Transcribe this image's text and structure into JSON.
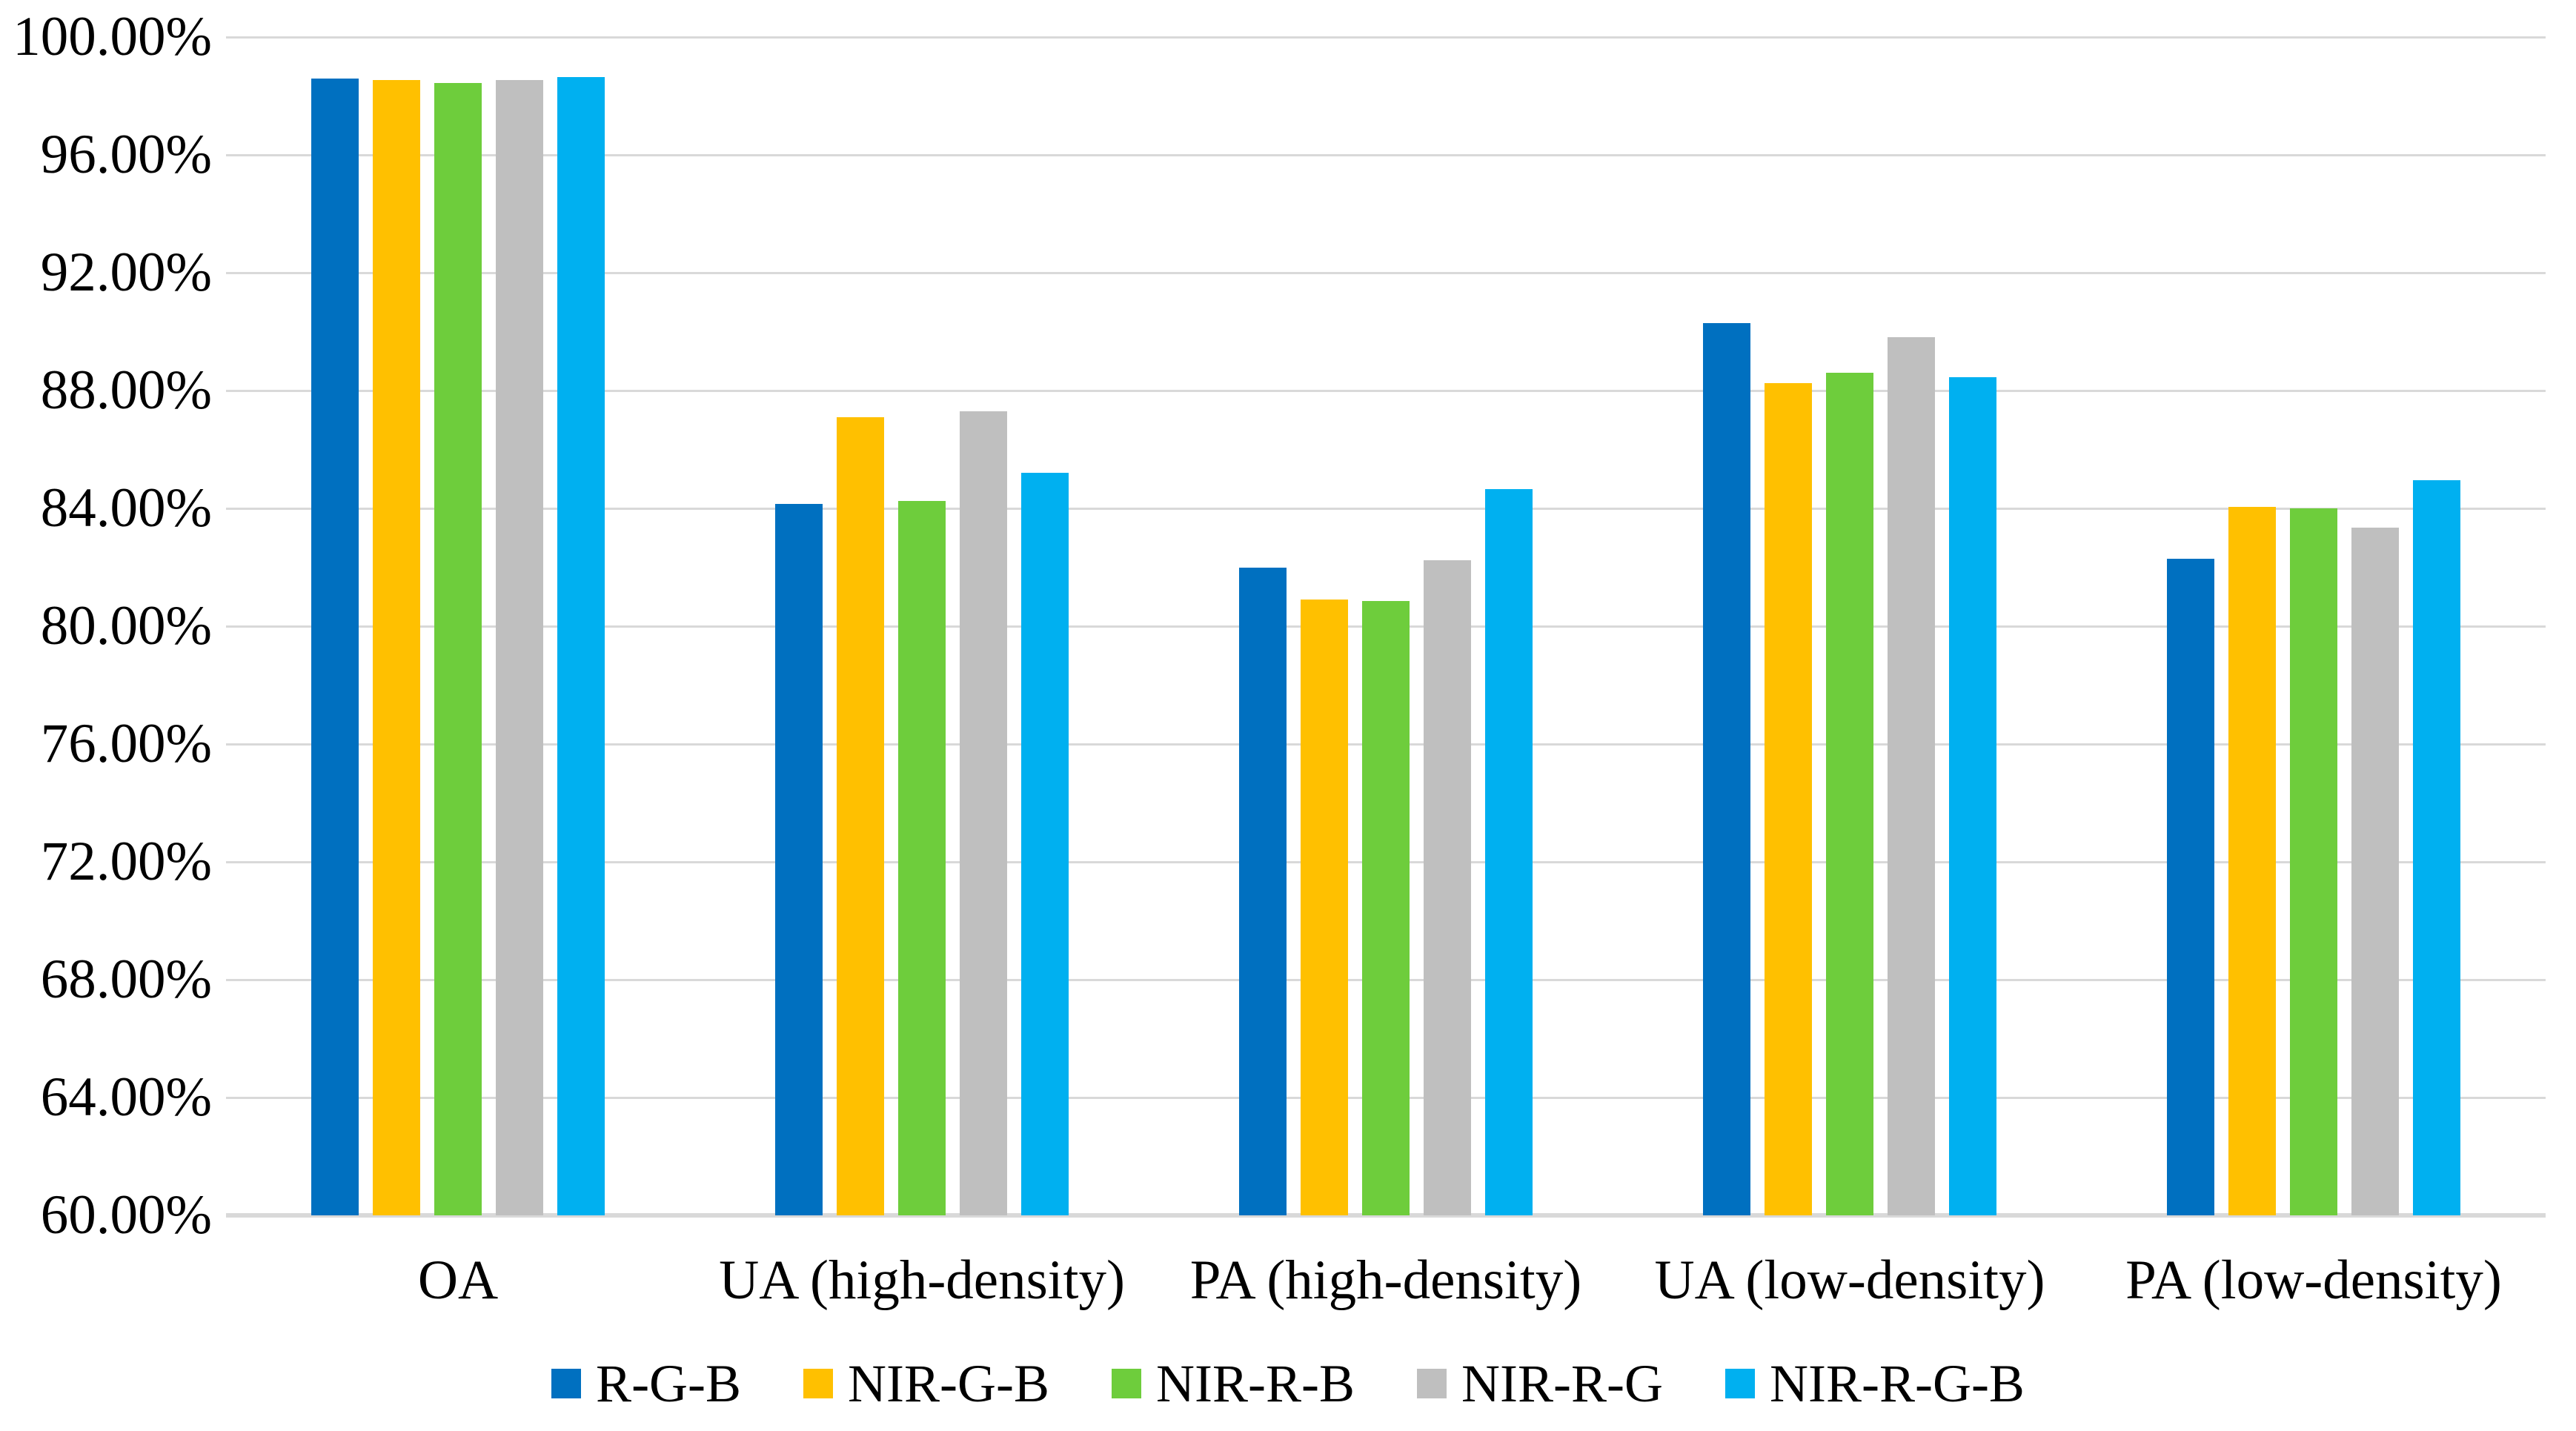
{
  "chart_data": {
    "type": "bar",
    "title": "",
    "categories": [
      "OA",
      "UA (high-density)",
      "PA (high-density)",
      "UA (low-density)",
      "PA (low-density)"
    ],
    "series": [
      {
        "name": "R-G-B",
        "color": "#0070C0",
        "values": [
          98.6,
          84.15,
          82.0,
          90.3,
          82.3
        ]
      },
      {
        "name": "NIR-G-B",
        "color": "#FFC000",
        "values": [
          98.55,
          87.1,
          80.9,
          88.25,
          84.05
        ]
      },
      {
        "name": "NIR-R-B",
        "color": "#6ECD3C",
        "values": [
          98.45,
          84.25,
          80.85,
          88.6,
          84.0
        ]
      },
      {
        "name": "NIR-R-G",
        "color": "#BFBFBF",
        "values": [
          98.55,
          87.3,
          82.25,
          89.8,
          83.35
        ]
      },
      {
        "name": "NIR-R-G-B",
        "color": "#00B0F0",
        "values": [
          98.65,
          85.2,
          84.65,
          88.45,
          84.95
        ]
      }
    ],
    "y_axis": {
      "min": 60,
      "max": 100,
      "step": 4,
      "tick_labels": [
        "100.00%",
        "96.00%",
        "92.00%",
        "88.00%",
        "84.00%",
        "80.00%",
        "76.00%",
        "72.00%",
        "68.00%",
        "64.00%",
        "60.00%"
      ]
    },
    "xlabel": "",
    "ylabel": "",
    "legend_position": "bottom",
    "grid": true
  },
  "styles": {
    "gridline_color": "#D9D9D9",
    "text_color": "#000000",
    "background": "#FFFFFF"
  }
}
